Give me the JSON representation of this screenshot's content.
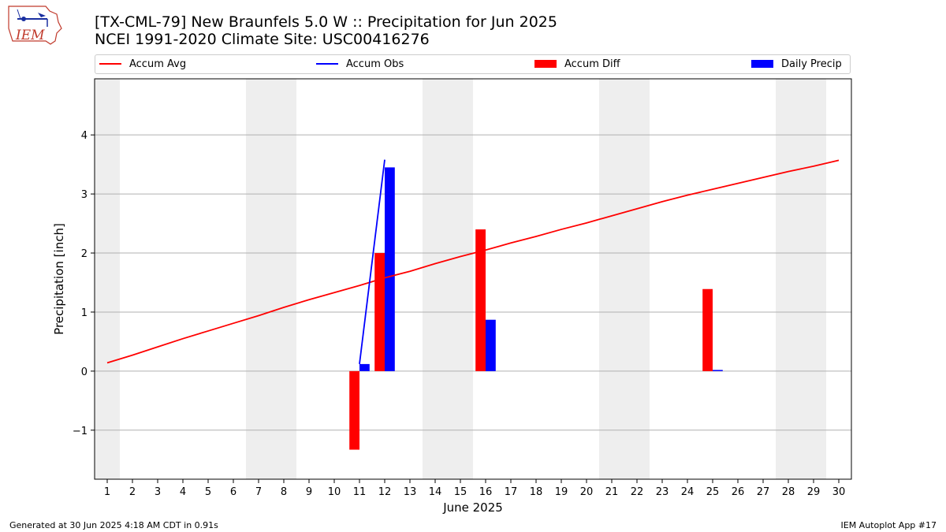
{
  "header": {
    "logo_text": "IEM",
    "title_line1": "[TX-CML-79] New Braunfels 5.0 W :: Precipitation for Jun 2025",
    "title_line2": "NCEI 1991-2020 Climate Site: USC00416276"
  },
  "legend": {
    "items": [
      {
        "label": "Accum Avg",
        "kind": "line",
        "color": "#ff0000"
      },
      {
        "label": "Accum Obs",
        "kind": "line",
        "color": "#0000ff"
      },
      {
        "label": "Accum Diff",
        "kind": "bar",
        "color": "#ff0000"
      },
      {
        "label": "Daily Precip",
        "kind": "bar",
        "color": "#0000ff"
      }
    ]
  },
  "footer": {
    "generated": "Generated at 30 Jun 2025 4:18 AM CDT in 0.91s",
    "app": "IEM Autoplot App #17"
  },
  "chart_data": {
    "type": "bar",
    "title": "[TX-CML-79] New Braunfels 5.0 W :: Precipitation for Jun 2025",
    "subtitle": "NCEI 1991-2020 Climate Site: USC00416276",
    "xlabel": "June 2025",
    "ylabel": "Precipitation [inch]",
    "xlim": [
      0.5,
      30.5
    ],
    "ylim": [
      -1.83,
      4.95
    ],
    "yticks": [
      -1,
      0,
      1,
      2,
      3,
      4
    ],
    "yticklabels": [
      "−1",
      "0",
      "1",
      "2",
      "3",
      "4"
    ],
    "x": [
      1,
      2,
      3,
      4,
      5,
      6,
      7,
      8,
      9,
      10,
      11,
      12,
      13,
      14,
      15,
      16,
      17,
      18,
      19,
      20,
      21,
      22,
      23,
      24,
      25,
      26,
      27,
      28,
      29,
      30
    ],
    "weekend_shading": [
      [
        0.5,
        1.5
      ],
      [
        6.5,
        8.5
      ],
      [
        13.5,
        15.5
      ],
      [
        20.5,
        22.5
      ],
      [
        27.5,
        29.5
      ]
    ],
    "grid": "y",
    "legend_position": "top",
    "series": [
      {
        "name": "Accum Avg",
        "kind": "line",
        "color": "#ff0000",
        "x": [
          1,
          2,
          3,
          4,
          5,
          6,
          7,
          8,
          9,
          10,
          11,
          12,
          13,
          14,
          15,
          16,
          17,
          18,
          19,
          20,
          21,
          22,
          23,
          24,
          25,
          26,
          27,
          28,
          29,
          30
        ],
        "values": [
          0.14,
          0.27,
          0.41,
          0.55,
          0.68,
          0.81,
          0.94,
          1.08,
          1.21,
          1.33,
          1.45,
          1.58,
          1.69,
          1.82,
          1.94,
          2.05,
          2.17,
          2.28,
          2.4,
          2.51,
          2.63,
          2.75,
          2.87,
          2.98,
          3.08,
          3.18,
          3.28,
          3.38,
          3.47,
          3.57
        ]
      },
      {
        "name": "Accum Obs",
        "kind": "line",
        "color": "#0000ff",
        "x": [
          11,
          12
        ],
        "values": [
          0.12,
          3.58
        ]
      },
      {
        "name": "Accum Diff",
        "kind": "bar",
        "color": "#ff0000",
        "x": [
          11,
          12,
          16,
          25
        ],
        "values": [
          -1.33,
          2.0,
          2.4,
          1.39
        ]
      },
      {
        "name": "Daily Precip",
        "kind": "bar",
        "color": "#0000ff",
        "x": [
          11,
          12,
          16,
          25
        ],
        "values": [
          0.12,
          3.45,
          0.87,
          0.02
        ]
      }
    ]
  }
}
